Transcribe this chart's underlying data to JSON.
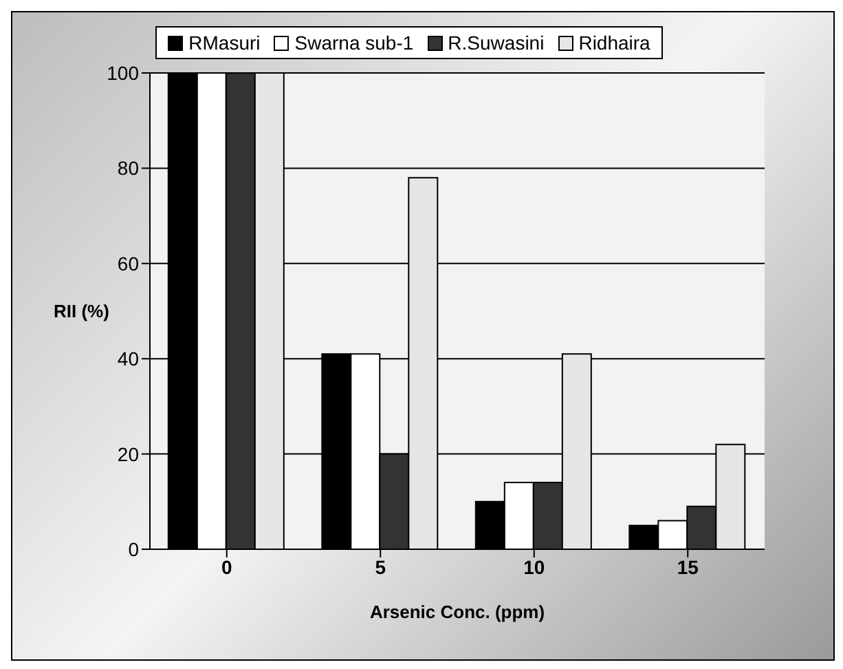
{
  "chart_data": {
    "type": "bar",
    "xlabel": "Arsenic Conc. (ppm)",
    "ylabel": "RII (%)",
    "categories": [
      "0",
      "5",
      "10",
      "15"
    ],
    "series": [
      {
        "name": "RMasuri",
        "color": "#000000",
        "values": [
          100,
          41,
          10,
          5
        ]
      },
      {
        "name": "Swarna sub-1",
        "color": "#ffffff",
        "values": [
          100,
          41,
          14,
          6
        ]
      },
      {
        "name": "R.Suwasini",
        "color": "#333333",
        "values": [
          100,
          20,
          14,
          9
        ]
      },
      {
        "name": "Ridhaira",
        "color": "#e6e6e6",
        "values": [
          100,
          78,
          41,
          22
        ]
      }
    ],
    "ylim": [
      0,
      100
    ],
    "yticks": [
      0,
      20,
      40,
      60,
      80,
      100
    ],
    "grid": "y",
    "legend": "top"
  }
}
